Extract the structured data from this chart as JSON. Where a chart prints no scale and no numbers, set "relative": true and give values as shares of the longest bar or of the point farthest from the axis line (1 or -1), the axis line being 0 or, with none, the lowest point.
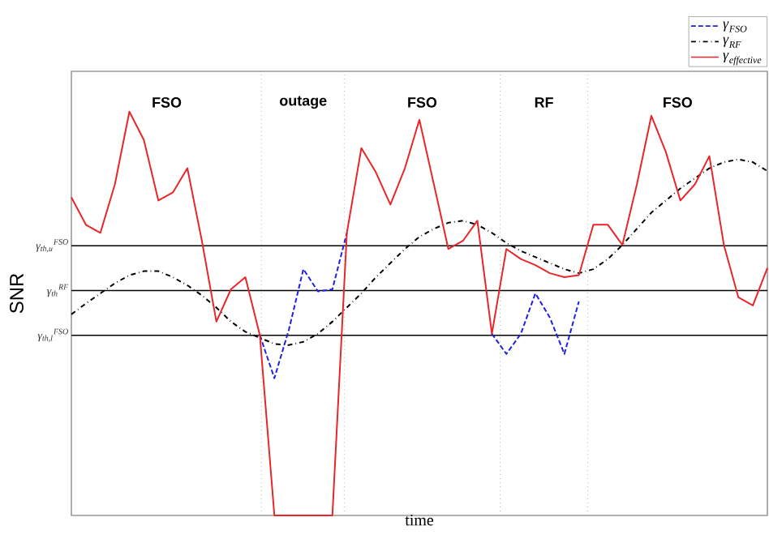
{
  "chart_data": {
    "type": "line",
    "relative": true,
    "xlabel": "time",
    "ylabel": "SNR",
    "legend": "top right",
    "categories": [
      null,
      null,
      null,
      null,
      null,
      null,
      null,
      null,
      null,
      null,
      null,
      null,
      null,
      null,
      null,
      null,
      null,
      null,
      null,
      null,
      null,
      null,
      null,
      null,
      null,
      null,
      null,
      null,
      null,
      null,
      null,
      null,
      null,
      null,
      null,
      null,
      null,
      null,
      null,
      null,
      null,
      null,
      null,
      null,
      null,
      null,
      null,
      null,
      null
    ],
    "series": [
      {
        "name": "\\gamma_{FSO}",
        "color": "#2020e0",
        "line_style": "dashed",
        "values": [
          null,
          null,
          null,
          null,
          null,
          null,
          null,
          null,
          null,
          null,
          null,
          null,
          null,
          0.446,
          0.34,
          0.46,
          0.61,
          0.555,
          0.56,
          0.7,
          null,
          null,
          null,
          null,
          null,
          null,
          null,
          null,
          null,
          0.45,
          0.4,
          0.45,
          0.55,
          0.49,
          0.4,
          0.53,
          null,
          null,
          null,
          null,
          null,
          null,
          null,
          null,
          null,
          null,
          null,
          null,
          null
        ]
      },
      {
        "name": "\\gamma_{RF}",
        "color": "#000000",
        "line_style": "dashdot",
        "values": [
          0.498,
          0.525,
          0.55,
          0.575,
          0.595,
          0.605,
          0.605,
          0.59,
          0.57,
          0.545,
          0.515,
          0.48,
          0.455,
          0.44,
          0.425,
          0.422,
          0.43,
          0.45,
          0.48,
          0.515,
          0.55,
          0.59,
          0.625,
          0.66,
          0.69,
          0.71,
          0.725,
          0.73,
          0.72,
          0.7,
          0.675,
          0.655,
          0.64,
          0.625,
          0.61,
          0.6,
          0.61,
          0.635,
          0.67,
          0.71,
          0.75,
          0.78,
          0.81,
          0.835,
          0.86,
          0.875,
          0.882,
          0.875,
          0.853
        ]
      },
      {
        "name": "\\gamma_{effective}",
        "color": "#e8262a",
        "line_style": "solid",
        "values": [
          0.788,
          0.72,
          0.7,
          0.82,
          1.0,
          0.93,
          0.78,
          0.8,
          0.86,
          0.68,
          0.48,
          0.56,
          0.59,
          0.446,
          0,
          0,
          0,
          0,
          0,
          0.7,
          0.91,
          0.85,
          0.77,
          0.86,
          0.98,
          0.82,
          0.66,
          0.68,
          0.73,
          0.45,
          0.66,
          0.635,
          0.62,
          0.6,
          0.59,
          0.595,
          0.72,
          0.72,
          0.67,
          0.82,
          0.99,
          0.9,
          0.78,
          0.82,
          0.89,
          0.67,
          0.54,
          0.52,
          0.613
        ]
      }
    ],
    "ref_lines": [
      {
        "axis": "y",
        "value": 0.668,
        "label": "γ$_{th,u}$$^{FSO}$",
        "color": "#000000",
        "line_style": "solid"
      },
      {
        "axis": "y",
        "value": 0.557,
        "label": "γ$_{th}$$^{RF}$",
        "color": "#000000",
        "line_style": "solid"
      },
      {
        "axis": "y",
        "value": 0.446,
        "label": "γ$_{th,l}$$^{FSO}$",
        "color": "#000000",
        "line_style": "solid"
      }
    ],
    "annotations": [
      "FSO",
      "outage",
      "FSO",
      "RF",
      "FSO"
    ]
  }
}
